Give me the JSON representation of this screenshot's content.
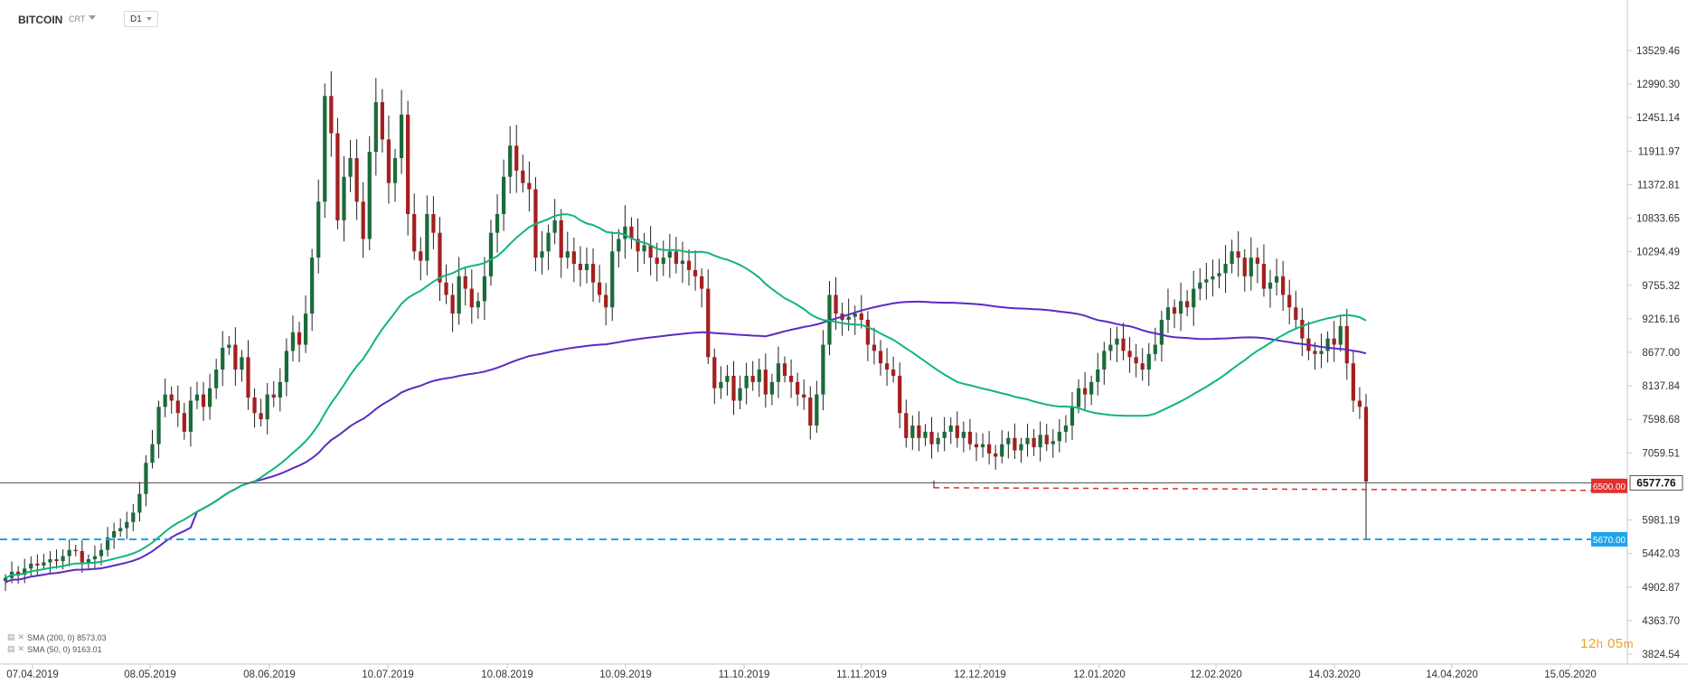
{
  "toolbar": {
    "symbol": "BITCOIN",
    "type": "CRT",
    "timeframe": "D1"
  },
  "legend": [
    {
      "label": "SMA (200, 0) 8573.03",
      "color": "#5b2bc2"
    },
    {
      "label": "SMA (50, 0) 9163.01",
      "color": "#11b57a"
    }
  ],
  "timer": {
    "h": "12",
    "h_unit": "h",
    "m": "05",
    "m_unit": "m"
  },
  "price_labels": {
    "current": "6577.76",
    "red_level": "6500.00",
    "blue_level": "5670.00"
  },
  "colors": {
    "up": "#1b6b3a",
    "down": "#a41f1f",
    "sma50": "#11b57a",
    "sma200": "#5b2bc2",
    "red_line": "#e03030",
    "blue_line": "#1ea4ea"
  },
  "chart_data": {
    "type": "candlestick",
    "symbol": "BITCOIN",
    "timeframe": "D1",
    "x_tick_labels": [
      "07.04.2019",
      "08.05.2019",
      "08.06.2019",
      "10.07.2019",
      "10.08.2019",
      "10.09.2019",
      "11.10.2019",
      "11.11.2019",
      "12.12.2019",
      "12.01.2020",
      "12.02.2020",
      "14.03.2020",
      "14.04.2020",
      "15.05.2020"
    ],
    "y_tick_labels": [
      "13529.46",
      "12990.30",
      "12451.14",
      "11911.97",
      "11372.81",
      "10833.65",
      "10294.49",
      "9755.32",
      "9216.16",
      "8677.00",
      "8137.84",
      "7598.68",
      "7059.51",
      "5981.19",
      "5442.03",
      "4902.87",
      "4363.70",
      "3824.54"
    ],
    "ylim": [
      3824.54,
      14000
    ],
    "closes": [
      5050,
      5150,
      5100,
      5200,
      5280,
      5250,
      5300,
      5350,
      5320,
      5400,
      5500,
      5480,
      5300,
      5350,
      5400,
      5500,
      5700,
      5800,
      5850,
      5950,
      6100,
      6400,
      6900,
      7200,
      7800,
      8000,
      7900,
      7700,
      7400,
      7900,
      8000,
      7800,
      8100,
      8400,
      8750,
      8800,
      8400,
      8600,
      7950,
      7700,
      7600,
      8000,
      7950,
      8200,
      8700,
      9000,
      8800,
      9300,
      10200,
      11100,
      12800,
      12200,
      10800,
      11500,
      11800,
      11100,
      10500,
      11900,
      12700,
      12100,
      11400,
      11800,
      12500,
      10900,
      10300,
      10150,
      10900,
      10600,
      9800,
      9600,
      9300,
      9900,
      9700,
      9400,
      9500,
      9900,
      10600,
      10900,
      11500,
      12000,
      11600,
      11400,
      11300,
      10200,
      10300,
      10600,
      10800,
      10200,
      10300,
      10100,
      10000,
      10100,
      9800,
      9600,
      9400,
      10300,
      10500,
      10700,
      10500,
      10300,
      10400,
      10200,
      10100,
      10200,
      10300,
      10100,
      10150,
      10000,
      9900,
      9700,
      8600,
      8100,
      8200,
      8300,
      7900,
      8100,
      8300,
      8200,
      8400,
      8000,
      8200,
      8500,
      8300,
      8200,
      8000,
      7950,
      7500,
      8000,
      8800,
      9600,
      9300,
      9200,
      9250,
      9300,
      9200,
      8800,
      8700,
      8500,
      8400,
      8300,
      7700,
      7300,
      7500,
      7300,
      7400,
      7200,
      7300,
      7400,
      7500,
      7300,
      7400,
      7200,
      7150,
      7200,
      7050,
      7000,
      7200,
      7300,
      7100,
      7200,
      7300,
      7150,
      7350,
      7200,
      7250,
      7400,
      7500,
      7800,
      8100,
      8000,
      8200,
      8400,
      8700,
      8800,
      8900,
      8700,
      8600,
      8500,
      8400,
      8650,
      8800,
      9200,
      9400,
      9300,
      9500,
      9400,
      9700,
      9800,
      9850,
      9900,
      9950,
      10100,
      10300,
      10200,
      9900,
      10200,
      10100,
      9700,
      9800,
      9900,
      9600,
      9400,
      9200,
      8900,
      8700,
      8650,
      8700,
      8900,
      8800,
      9100,
      8500,
      7900,
      7800,
      6600
    ],
    "events": {
      "sudden_drop_low": 5670,
      "last_close": 6577.76
    },
    "series": [
      {
        "name": "SMA (200, 0)",
        "value": 8573.03,
        "color": "#5b2bc2"
      },
      {
        "name": "SMA (50, 0)",
        "value": 9163.01,
        "color": "#11b57a"
      }
    ],
    "horizontal_levels": [
      {
        "value": 6577.76,
        "style": "solid",
        "color": "#555555"
      },
      {
        "value": 6500.0,
        "style": "dashed",
        "color": "#e03030"
      },
      {
        "value": 5670.0,
        "style": "dashed",
        "color": "#1ea4ea"
      }
    ]
  }
}
